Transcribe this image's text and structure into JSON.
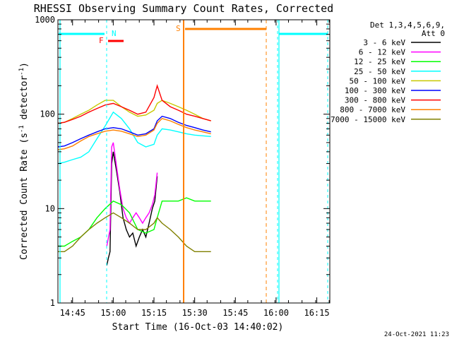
{
  "chart_data": {
    "type": "line",
    "title": "RHESSI Observing Summary Count Rates, Corrected",
    "xlabel": "Start Time (16-Oct-03 14:40:02)",
    "ylabel_main": "Corrected Count Rate (s",
    "ylabel_sup1": "-1",
    "ylabel_mid": " detector",
    "ylabel_sup2": "-1",
    "ylabel_end": ")",
    "yscale": "log",
    "ylim": [
      1,
      1000
    ],
    "xlim_minutes": [
      14.66,
      16.33
    ],
    "x_ticks": [
      {
        "label": "14:45",
        "t": 14.75
      },
      {
        "label": "15:00",
        "t": 15.0
      },
      {
        "label": "15:15",
        "t": 15.25
      },
      {
        "label": "15:30",
        "t": 15.5
      },
      {
        "label": "15:45",
        "t": 15.75
      },
      {
        "label": "16:00",
        "t": 16.0
      },
      {
        "label": "16:15",
        "t": 16.25
      }
    ],
    "y_ticks": [
      {
        "label": "1",
        "v": 1
      },
      {
        "label": "10",
        "v": 10
      },
      {
        "label": "100",
        "v": 100
      },
      {
        "label": "1000",
        "v": 1000
      }
    ],
    "legend_header": [
      "Det 1,3,4,5,6,9,",
      "Att 0"
    ],
    "series": [
      {
        "name": "3 - 6 keV",
        "color": "#000000",
        "x": [
          14.96,
          14.97,
          14.98,
          14.99,
          15.0,
          15.02,
          15.04,
          15.06,
          15.08,
          15.1,
          15.12,
          15.14,
          15.16,
          15.18,
          15.2,
          15.22,
          15.24,
          15.255,
          15.27
        ],
        "y": [
          2.5,
          3,
          3.5,
          30,
          40,
          25,
          15,
          8,
          6,
          5,
          5.5,
          4,
          5,
          6,
          5,
          7,
          10,
          12,
          22
        ]
      },
      {
        "name": "6 - 12 keV",
        "color": "#ff00ff",
        "x": [
          14.96,
          14.98,
          14.99,
          15.0,
          15.02,
          15.04,
          15.06,
          15.08,
          15.1,
          15.12,
          15.14,
          15.16,
          15.18,
          15.2,
          15.22,
          15.24,
          15.255,
          15.27
        ],
        "y": [
          4,
          6,
          45,
          50,
          28,
          16,
          10,
          8,
          7,
          8,
          9,
          8,
          7,
          8,
          9,
          11,
          14,
          24
        ]
      },
      {
        "name": "12 - 25 keV",
        "color": "#00ff00",
        "x": [
          14.66,
          14.7,
          14.75,
          14.8,
          14.85,
          14.9,
          14.95,
          15.0,
          15.05,
          15.1,
          15.15,
          15.2,
          15.25,
          15.27,
          15.3,
          15.35,
          15.4,
          15.45,
          15.5,
          15.55,
          15.6
        ],
        "y": [
          4,
          4,
          4.5,
          5,
          6,
          8,
          10,
          12,
          11,
          9,
          6,
          5.5,
          6,
          8,
          12,
          12,
          12,
          13,
          12,
          12,
          12
        ]
      },
      {
        "name": "25 - 50 keV",
        "color": "#00ffff",
        "x": [
          14.66,
          14.7,
          14.75,
          14.8,
          14.85,
          14.9,
          14.95,
          15.0,
          15.05,
          15.1,
          15.15,
          15.2,
          15.25,
          15.27,
          15.3,
          15.35,
          15.4,
          15.45,
          15.5,
          15.55,
          15.6
        ],
        "y": [
          30,
          31,
          33,
          35,
          40,
          55,
          75,
          105,
          90,
          70,
          50,
          45,
          48,
          60,
          70,
          68,
          65,
          62,
          60,
          59,
          58
        ]
      },
      {
        "name": "50 - 100 keV",
        "color": "#c8c800",
        "x": [
          14.66,
          14.7,
          14.75,
          14.8,
          14.85,
          14.9,
          14.95,
          15.0,
          15.05,
          15.1,
          15.15,
          15.2,
          15.25,
          15.27,
          15.3,
          15.35,
          15.4,
          15.45,
          15.5,
          15.55,
          15.6
        ],
        "y": [
          80,
          82,
          90,
          100,
          110,
          125,
          140,
          140,
          120,
          105,
          95,
          98,
          110,
          130,
          140,
          130,
          120,
          110,
          100,
          90,
          85
        ]
      },
      {
        "name": "100 - 300 keV",
        "color": "#0000ff",
        "x": [
          14.66,
          14.7,
          14.75,
          14.8,
          14.85,
          14.9,
          14.95,
          15.0,
          15.05,
          15.1,
          15.15,
          15.2,
          15.25,
          15.27,
          15.3,
          15.35,
          15.4,
          15.45,
          15.5,
          15.55,
          15.6
        ],
        "y": [
          45,
          46,
          50,
          55,
          60,
          65,
          70,
          72,
          70,
          65,
          60,
          62,
          70,
          85,
          95,
          90,
          82,
          76,
          72,
          68,
          65
        ]
      },
      {
        "name": "300 - 800 keV",
        "color": "#ff0000",
        "x": [
          14.66,
          14.7,
          14.75,
          14.8,
          14.85,
          14.9,
          14.95,
          15.0,
          15.05,
          15.1,
          15.15,
          15.2,
          15.25,
          15.27,
          15.3,
          15.35,
          15.4,
          15.45,
          15.5,
          15.55,
          15.6
        ],
        "y": [
          80,
          82,
          88,
          95,
          105,
          115,
          125,
          130,
          120,
          110,
          100,
          105,
          150,
          200,
          140,
          120,
          110,
          100,
          95,
          90,
          85
        ]
      },
      {
        "name": "800 - 7000 keV",
        "color": "#ff8000",
        "x": [
          14.66,
          14.7,
          14.75,
          14.8,
          14.85,
          14.9,
          14.95,
          15.0,
          15.05,
          15.1,
          15.15,
          15.2,
          15.25,
          15.27,
          15.3,
          15.35,
          15.4,
          15.45,
          15.5,
          15.55,
          15.6
        ],
        "y": [
          42,
          43,
          46,
          52,
          58,
          62,
          66,
          68,
          66,
          62,
          58,
          60,
          68,
          80,
          90,
          85,
          78,
          72,
          68,
          65,
          62
        ]
      },
      {
        "name": "7000 - 15000 keV",
        "color": "#808000",
        "x": [
          14.66,
          14.7,
          14.75,
          14.8,
          14.85,
          14.9,
          14.95,
          15.0,
          15.05,
          15.1,
          15.15,
          15.2,
          15.25,
          15.27,
          15.3,
          15.35,
          15.4,
          15.45,
          15.5,
          15.55,
          15.6
        ],
        "y": [
          3.5,
          3.5,
          4,
          5,
          6,
          7,
          8,
          9,
          8,
          7,
          6,
          6,
          7,
          8,
          7,
          6,
          5,
          4,
          3.5,
          3.5,
          3.5
        ]
      }
    ],
    "annotations": [
      {
        "label": "N",
        "color": "#00ffff"
      },
      {
        "label": "F",
        "color": "#ff0000"
      },
      {
        "label": "S",
        "color": "#ff8000"
      }
    ],
    "timestamp": "24-Oct-2021 11:23"
  }
}
